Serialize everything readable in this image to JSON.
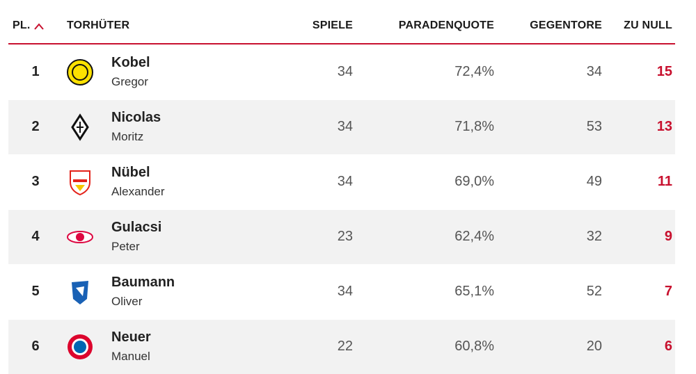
{
  "table": {
    "columns": [
      "PL.",
      "TORHÜTER",
      "SPIELE",
      "PARADENQUOTE",
      "GEGENTORE",
      "ZU NULL"
    ],
    "rows": [
      {
        "rank": 1,
        "last_name": "Kobel",
        "first_name": "Gregor",
        "games": 34,
        "save_rate": "72,4%",
        "goals_against": 34,
        "clean_sheets": 15
      },
      {
        "rank": 2,
        "last_name": "Nicolas",
        "first_name": "Moritz",
        "games": 34,
        "save_rate": "71,8%",
        "goals_against": 53,
        "clean_sheets": 13
      },
      {
        "rank": 3,
        "last_name": "Nübel",
        "first_name": "Alexander",
        "games": 34,
        "save_rate": "69,0%",
        "goals_against": 49,
        "clean_sheets": 11
      },
      {
        "rank": 4,
        "last_name": "Gulacsi",
        "first_name": "Peter",
        "games": 23,
        "save_rate": "62,4%",
        "goals_against": 32,
        "clean_sheets": 9
      },
      {
        "rank": 5,
        "last_name": "Baumann",
        "first_name": "Oliver",
        "games": 34,
        "save_rate": "65,1%",
        "goals_against": 52,
        "clean_sheets": 7
      },
      {
        "rank": 6,
        "last_name": "Neuer",
        "first_name": "Manuel",
        "games": 22,
        "save_rate": "60,8%",
        "goals_against": 20,
        "clean_sheets": 6
      }
    ]
  }
}
